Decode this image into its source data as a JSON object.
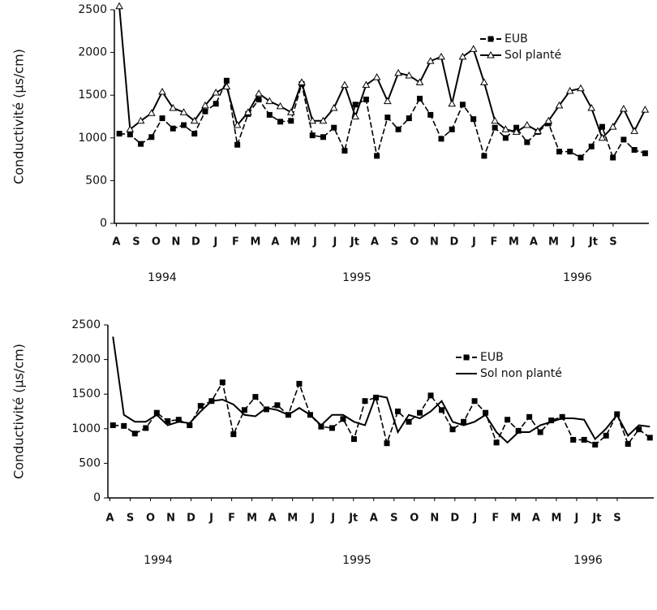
{
  "chart_data": [
    {
      "type": "line",
      "y_label": "Conductivité (µs/cm)",
      "x": [
        0.15,
        0.69,
        1.23,
        1.77,
        2.31,
        2.85,
        3.39,
        3.93,
        4.47,
        5.01,
        5.55,
        6.09,
        6.63,
        7.17,
        7.71,
        8.25,
        8.79,
        9.33,
        9.87,
        10.41,
        10.95,
        11.49,
        12.03,
        12.57,
        13.11,
        13.65,
        14.19,
        14.73,
        15.27,
        15.81,
        16.35,
        16.89,
        17.43,
        17.97,
        18.51,
        19.05,
        19.59,
        20.13,
        20.67,
        21.21,
        21.75,
        22.29,
        22.83,
        23.37,
        23.91,
        24.45,
        24.99,
        25.53,
        26.07,
        26.61
      ],
      "series": [
        {
          "name": "EUB",
          "color": "#000000",
          "marker": "square",
          "dashed": true,
          "values": [
            1050,
            1040,
            930,
            1010,
            1230,
            1110,
            1150,
            1050,
            1310,
            1400,
            1670,
            920,
            1280,
            1450,
            1270,
            1190,
            1200,
            1630,
            1030,
            1010,
            1120,
            850,
            1390,
            1450,
            790,
            1240,
            1100,
            1230,
            1460,
            1270,
            990,
            1100,
            1390,
            1220,
            790,
            1120,
            1000,
            1120,
            950,
            1070,
            1170,
            840,
            840,
            770,
            900,
            1130,
            770,
            980,
            860,
            820
          ]
        },
        {
          "name": "Sol planté",
          "color": "#000000",
          "marker": "triangle",
          "dashed": false,
          "values": [
            2540,
            1100,
            1200,
            1290,
            1540,
            1350,
            1300,
            1200,
            1380,
            1530,
            1600,
            1150,
            1300,
            1520,
            1430,
            1370,
            1300,
            1650,
            1200,
            1200,
            1350,
            1620,
            1250,
            1620,
            1710,
            1430,
            1760,
            1730,
            1650,
            1900,
            1950,
            1400,
            1950,
            2040,
            1650,
            1200,
            1100,
            1070,
            1150,
            1080,
            1200,
            1380,
            1550,
            1580,
            1350,
            1000,
            1130,
            1340,
            1080,
            1330
          ]
        }
      ],
      "xlim": [
        -0.1,
        26.8
      ],
      "xticks": [
        {
          "value": 0,
          "label": "A"
        },
        {
          "value": 1,
          "label": "S"
        },
        {
          "value": 2,
          "label": "O"
        },
        {
          "value": 3,
          "label": "N"
        },
        {
          "value": 4,
          "label": "D"
        },
        {
          "value": 5,
          "label": "J"
        },
        {
          "value": 6,
          "label": "F"
        },
        {
          "value": 7,
          "label": "M"
        },
        {
          "value": 8,
          "label": "A"
        },
        {
          "value": 9,
          "label": "M"
        },
        {
          "value": 10,
          "label": "J"
        },
        {
          "value": 11,
          "label": "J"
        },
        {
          "value": 12,
          "label": "Jt"
        },
        {
          "value": 13,
          "label": "A"
        },
        {
          "value": 14,
          "label": "S"
        },
        {
          "value": 15,
          "label": "O"
        },
        {
          "value": 16,
          "label": "N"
        },
        {
          "value": 17,
          "label": "D"
        },
        {
          "value": 18,
          "label": "J"
        },
        {
          "value": 19,
          "label": "F"
        },
        {
          "value": 20,
          "label": "M"
        },
        {
          "value": 21,
          "label": "A"
        },
        {
          "value": 22,
          "label": "M"
        },
        {
          "value": 23,
          "label": "J"
        },
        {
          "value": 24,
          "label": "Jt"
        },
        {
          "value": 25,
          "label": "S"
        }
      ],
      "year_labels": [
        "1994",
        "1995",
        "1996"
      ],
      "ylim": [
        0,
        2500
      ],
      "yticks": [
        0,
        500,
        1000,
        1500,
        2000,
        2500
      ]
    },
    {
      "type": "line",
      "y_label": "Conductivité (µs/cm)",
      "x": [
        0.15,
        0.69,
        1.23,
        1.77,
        2.31,
        2.85,
        3.39,
        3.93,
        4.47,
        5.01,
        5.55,
        6.09,
        6.63,
        7.17,
        7.71,
        8.25,
        8.79,
        9.33,
        9.87,
        10.41,
        10.95,
        11.49,
        12.03,
        12.57,
        13.11,
        13.65,
        14.19,
        14.73,
        15.27,
        15.81,
        16.35,
        16.89,
        17.43,
        17.97,
        18.51,
        19.05,
        19.59,
        20.13,
        20.67,
        21.21,
        21.75,
        22.29,
        22.83,
        23.37,
        23.91,
        24.45,
        24.99,
        25.53,
        26.07,
        26.61
      ],
      "series": [
        {
          "name": "EUB",
          "color": "#000000",
          "marker": "square",
          "dashed": true,
          "values": [
            1050,
            1040,
            930,
            1010,
            1230,
            1110,
            1130,
            1050,
            1330,
            1400,
            1670,
            920,
            1270,
            1460,
            1280,
            1340,
            1200,
            1650,
            1200,
            1030,
            1010,
            1140,
            850,
            1400,
            1450,
            790,
            1250,
            1100,
            1230,
            1480,
            1270,
            990,
            1100,
            1400,
            1230,
            800,
            1130,
            970,
            1170,
            950,
            1120,
            1170,
            840,
            840,
            770,
            900,
            1210,
            780,
            990,
            870
          ]
        },
        {
          "name": "Sol non planté",
          "color": "#000000",
          "marker": "none",
          "dashed": false,
          "values": [
            2330,
            1200,
            1100,
            1100,
            1200,
            1050,
            1100,
            1080,
            1250,
            1400,
            1420,
            1350,
            1200,
            1180,
            1300,
            1270,
            1200,
            1300,
            1200,
            1050,
            1200,
            1200,
            1100,
            1050,
            1480,
            1450,
            950,
            1200,
            1150,
            1250,
            1400,
            1100,
            1050,
            1100,
            1200,
            950,
            800,
            950,
            950,
            1050,
            1100,
            1150,
            1150,
            1130,
            850,
            1000,
            1200,
            900,
            1050,
            1030
          ]
        }
      ],
      "xlim": [
        -0.1,
        26.8
      ],
      "xticks": [
        {
          "value": 0,
          "label": "A"
        },
        {
          "value": 1,
          "label": "S"
        },
        {
          "value": 2,
          "label": "O"
        },
        {
          "value": 3,
          "label": "N"
        },
        {
          "value": 4,
          "label": "D"
        },
        {
          "value": 5,
          "label": "J"
        },
        {
          "value": 6,
          "label": "F"
        },
        {
          "value": 7,
          "label": "M"
        },
        {
          "value": 8,
          "label": "A"
        },
        {
          "value": 9,
          "label": "M"
        },
        {
          "value": 10,
          "label": "J"
        },
        {
          "value": 11,
          "label": "J"
        },
        {
          "value": 12,
          "label": "Jt"
        },
        {
          "value": 13,
          "label": "A"
        },
        {
          "value": 14,
          "label": "S"
        },
        {
          "value": 15,
          "label": "O"
        },
        {
          "value": 16,
          "label": "N"
        },
        {
          "value": 17,
          "label": "D"
        },
        {
          "value": 18,
          "label": "J"
        },
        {
          "value": 19,
          "label": "F"
        },
        {
          "value": 20,
          "label": "M"
        },
        {
          "value": 21,
          "label": "A"
        },
        {
          "value": 22,
          "label": "M"
        },
        {
          "value": 23,
          "label": "J"
        },
        {
          "value": 24,
          "label": "Jt"
        },
        {
          "value": 25,
          "label": "S"
        }
      ],
      "year_labels": [
        "1994",
        "1995",
        "1996"
      ],
      "ylim": [
        0,
        2500
      ],
      "yticks": [
        0,
        500,
        1000,
        1500,
        2000,
        2500
      ]
    }
  ]
}
